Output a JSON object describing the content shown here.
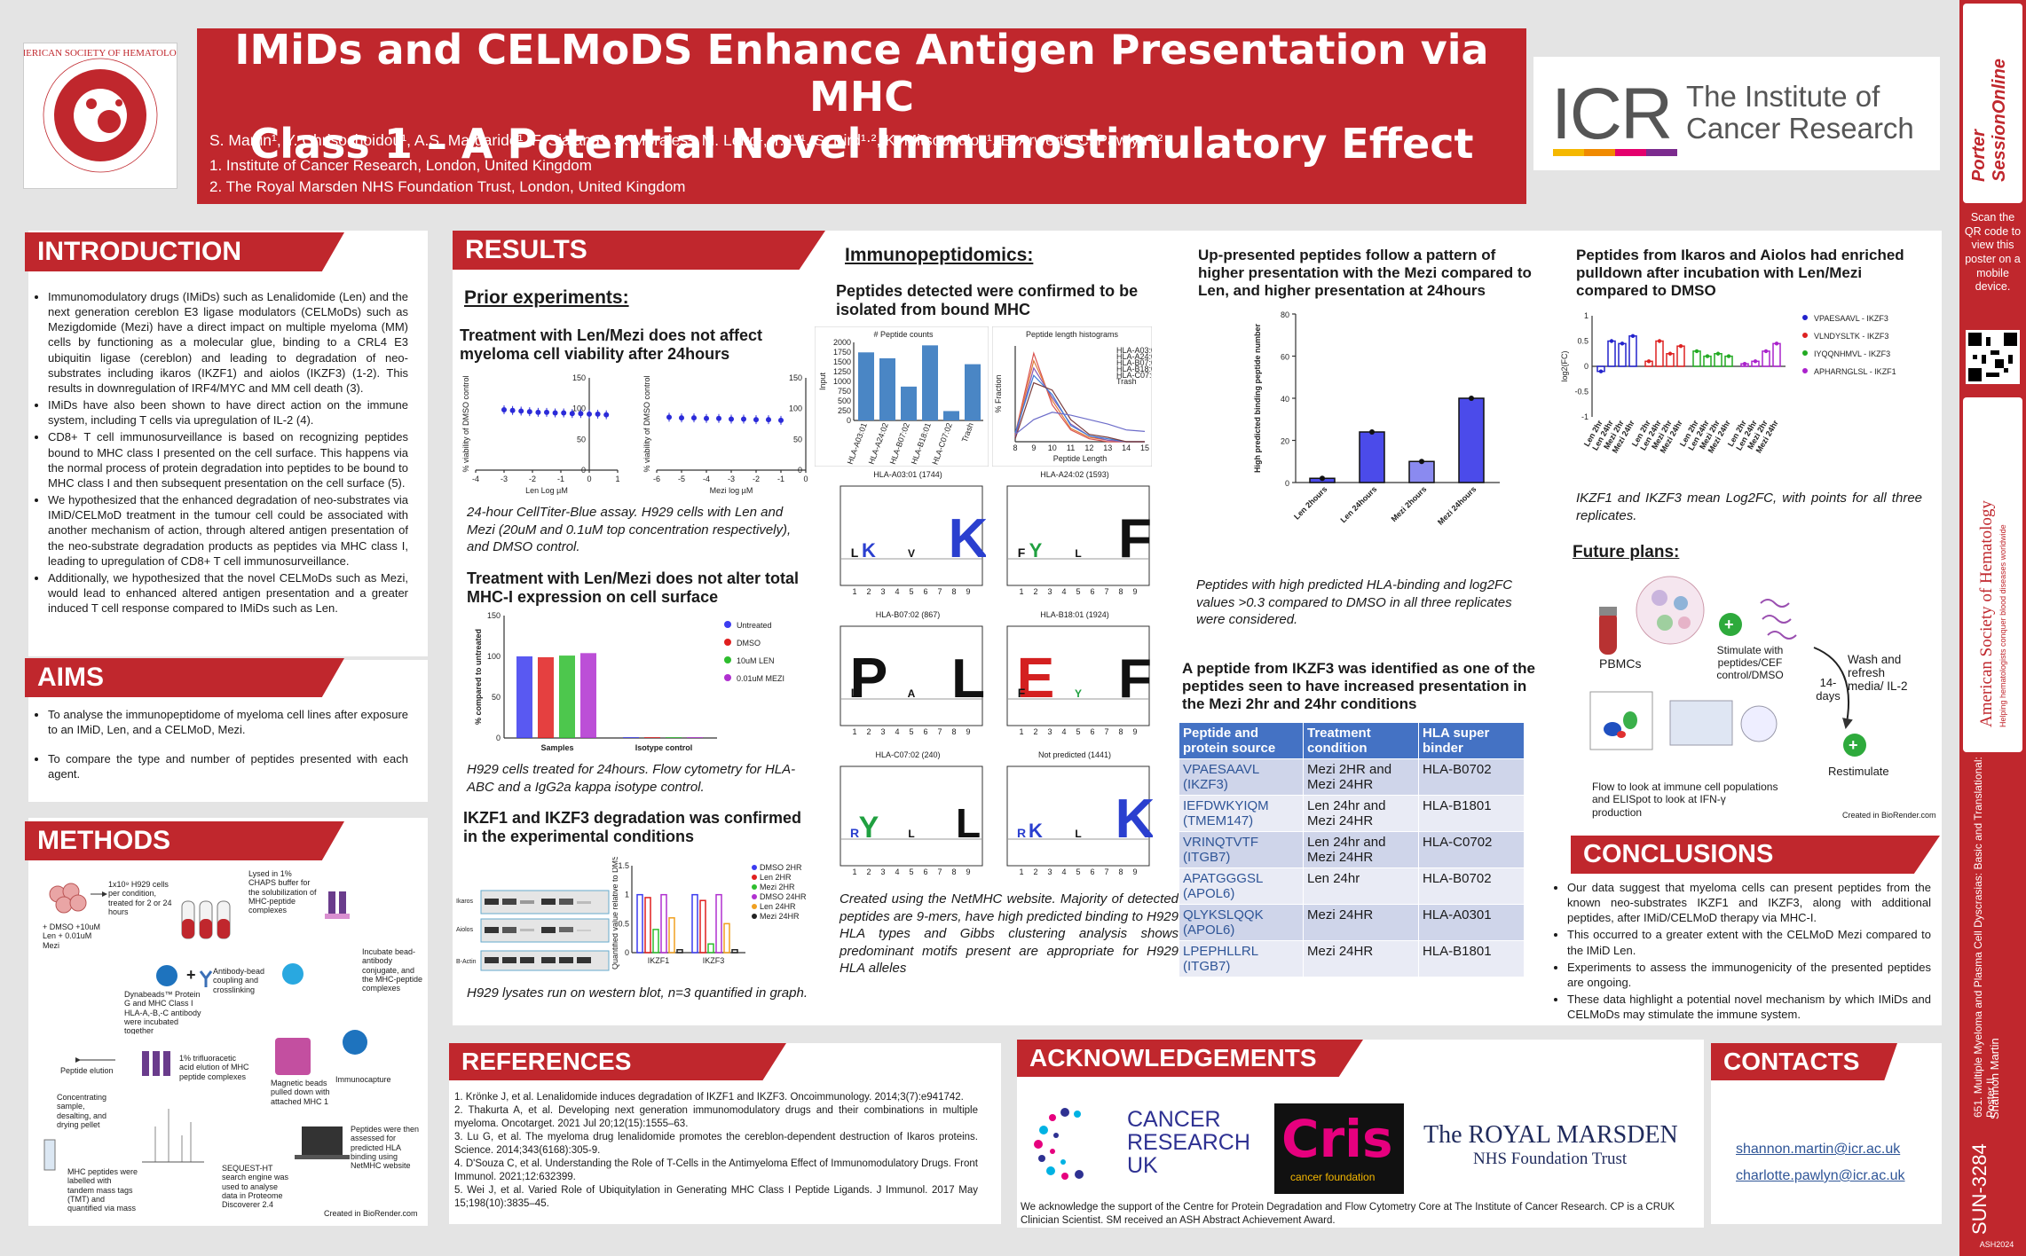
{
  "header": {
    "title_line1": "IMiDs and CELMoDS Enhance Antigen Presentation via MHC",
    "title_line2": "Class 1 – A Potential Novel Immunostimulatory Effect",
    "authors": "S. Martin¹, Y. Chrisochoidou¹, A.S. Margarido¹, F. Sialana¹, S. Morales¹, M. Leiro¹, Y. Li¹, S. Bird¹·², K. Mitsopoulos¹, E. Arwert¹, C. Pawlyn¹·²",
    "aff1": "1. Institute of Cancer Research, London, United Kingdom",
    "aff2": "2. The Royal Marsden NHS Foundation Trust, London, United Kingdom",
    "ash_logo_text": "AMERICAN SOCIETY OF HEMATOLOGY",
    "icr_abbr": "ICR",
    "icr_name1": "The Institute of",
    "icr_name2": "Cancer Research"
  },
  "sidebar": {
    "porter": "Porter SessionOnline",
    "qr_text": "Scan the QR code to view this poster on a mobile device.",
    "ash": "American Society of Hematology",
    "ash_tag": "Helping hematologists conquer blood diseases worldwide",
    "session": "651. Multiple Myeloma and Plasma Cell Dyscrasias: Basic and Translational: Poster II",
    "author": "Shannon Martin",
    "id": "SUN-3284",
    "year": "ASH2024"
  },
  "intro": {
    "heading": "INTRODUCTION",
    "bullets": [
      "Immunomodulatory drugs (IMiDs) such as Lenalidomide (Len) and the next generation cereblon E3 ligase modulators (CELMoDs) such as Mezigdomide (Mezi) have a direct impact on multiple myeloma (MM) cells by functioning as a molecular glue, binding to a CRL4 E3 ubiquitin ligase (cereblon) and leading to degradation of neo-substrates including ikaros (IKZF1) and aiolos (IKZF3) (1-2). This results in downregulation of IRF4/MYC and MM cell death (3).",
      "IMiDs have also been shown to have direct action on the immune system, including T cells via upregulation of IL-2 (4).",
      "CD8+ T cell immunosurveillance is based on recognizing peptides bound to MHC class I presented on the cell surface. This happens via the normal process of protein degradation into peptides to be bound to MHC class I and then subsequent presentation on the cell surface (5).",
      "We hypothesized that the enhanced degradation of neo-substrates via IMiD/CELMoD treatment in the tumour cell could be associated with another mechanism of action, through altered antigen presentation of the neo-substrate degradation products as peptides via MHC class I, leading to upregulation of CD8+ T cell immunosurveillance.",
      "Additionally, we hypothesized that the novel CELMoDs such as Mezi, would lead to enhanced altered antigen presentation and a greater induced T cell response compared to IMiDs such as Len."
    ]
  },
  "aims": {
    "heading": "AIMS",
    "bullets": [
      "To analyse the immunopeptidome of myeloma cell lines after exposure to an IMiD, Len, and a CELMoD, Mezi.",
      "To compare the type and number of peptides presented with each agent."
    ]
  },
  "methods": {
    "heading": "METHODS",
    "steps": [
      "1x10⁹ H929 cells per condition, treated for 2 or 24 hours",
      "+ DMSO +10uM Len + 0.01uM Mezi",
      "Lysed in 1% CHAPS buffer for the solubilization of MHC-peptide complexes",
      "Dynabeads™ Protein G and MHC Class I HLA-A,-B,-C antibody were incubated together",
      "Antibody-bead coupling and crosslinking",
      "Incubate bead-antibody conjugate, and the MHC-peptide complexes",
      "Peptide elution",
      "1% trifluoracetic acid elution of MHC peptide complexes",
      "Magnetic beads pulled down with attached MHC 1",
      "Immunocapture",
      "Concentrating sample, desalting, and drying pellet",
      "MHC peptides were labelled with tandem mass tags (TMT) and quantified via mass spec (TMT-MS2)",
      "SEQUEST-HT search engine was used to analyse data in Proteome Discoverer 2.4",
      "Peptides were then assessed for predicted HLA binding using NetMHC website"
    ],
    "credit": "Created in BioRender.com"
  },
  "results": {
    "heading": "RESULTS",
    "prior": "Prior experiments:",
    "t1": "Treatment with Len/Mezi does not affect myeloma cell viability after 24hours",
    "cap1": "24-hour CellTiter-Blue assay. H929 cells with Len and Mezi (20uM and 0.1uM top concentration respectively), and DMSO control.",
    "t2": "Treatment with Len/Mezi does not alter total MHC-I expression on cell surface",
    "cap2": "H929 cells treated for 24hours. Flow cytometry for HLA-ABC and a IgG2a kappa isotype control.",
    "t3": "IKZF1 and IKZF3 degradation was confirmed in the experimental conditions",
    "cap3": "H929 lysates run on western blot, n=3 quantified in graph."
  },
  "immuno": {
    "heading": "Immunopeptidomics:",
    "t1": "Peptides detected were confirmed to be isolated from bound MHC",
    "panel_a": "# Peptide counts",
    "panel_b": "Peptide length histograms",
    "ylab": "Input",
    "xlab": "Peptide Length",
    "logos": [
      "HLA-A03:01 (1744)",
      "HLA-A24:02 (1593)",
      "HLA-B07:02 (867)",
      "HLA-B18:01 (1924)",
      "HLA-C07:02 (240)",
      "Not predicted (1441)"
    ],
    "cap": "Created using the NetMHC website. Majority of detected peptides are 9-mers, have high predicted binding to H929 HLA types and Gibbs clustering analysis shows predominant motifs present are appropriate for H929 HLA alleles"
  },
  "uppres": {
    "t1": "Up-presented peptides follow a pattern of higher presentation with the Mezi compared to Len, and higher presentation at 24hours",
    "cap": "Peptides with high predicted HLA-binding and log2FC values >0.3 compared to DMSO in all three replicates were considered.",
    "t2": "A peptide from IKZF3 was identified as one of the peptides seen to have increased presentation in the Mezi 2hr and 24hr conditions"
  },
  "table": {
    "headers": [
      "Peptide and protein source",
      "Treatment condition",
      "HLA super binder"
    ],
    "rows": [
      [
        "VPAESAAVL (IKZF3)",
        "Mezi 2HR and Mezi 24HR",
        "HLA-B0702"
      ],
      [
        "IEFDWKYIQM (TMEM147)",
        "Len 24hr and Mezi 24HR",
        "HLA-B1801"
      ],
      [
        "VRINQTVTF (ITGB7)",
        "Len 24hr and Mezi 24HR",
        "HLA-C0702"
      ],
      [
        "APATGGGSL (APOL6)",
        "Len 24hr",
        "HLA-B0702"
      ],
      [
        "QLYKSLQQK (APOL6)",
        "Mezi 24HR",
        "HLA-A0301"
      ],
      [
        "LPEPHLLRL (ITGB7)",
        "Mezi 24HR",
        "HLA-B1801"
      ]
    ]
  },
  "ikaros": {
    "t1": "Peptides from Ikaros and Aiolos had enriched pulldown after incubation with Len/Mezi compared to DMSO",
    "cap": "IKZF1 and IKZF3 mean Log2FC, with points for all three replicates.",
    "ylab": "log2(FC)"
  },
  "future": {
    "heading": "Future plans:",
    "pbmc": "PBMCs",
    "stim": "Stimulate with peptides/CEF control/DMSO",
    "days": "14-days",
    "wash": "Wash and refresh media/ IL-2",
    "flow": "Flow to look at immune cell populations and ELISpot to look at IFN-γ production",
    "restim": "Restimulate",
    "credit": "Created in BioRender.com"
  },
  "conclusions": {
    "heading": "CONCLUSIONS",
    "bullets": [
      "Our data suggest that myeloma cells can present peptides from the known neo-substrates IKZF1 and IKZF3, along with additional peptides, after IMiD/CELMoD therapy via MHC-I.",
      "This occurred to a greater extent with the CELMoD Mezi compared to the IMiD Len.",
      "Experiments to assess the immunogenicity of the presented peptides are ongoing.",
      "These data highlight a potential novel mechanism by which IMiDs and CELMoDs may stimulate the immune system."
    ]
  },
  "references": {
    "heading": "REFERENCES",
    "items": [
      "1. Krönke J, et al. Lenalidomide induces degradation of IKZF1 and IKZF3. Oncoimmunology. 2014;3(7):e941742.",
      "2. Thakurta A, et al. Developing next generation immunomodulatory drugs and their combinations in multiple myeloma. Oncotarget. 2021 Jul 20;12(15):1555–63.",
      "3. Lu G, et al. The myeloma drug lenalidomide promotes the cereblon-dependent destruction of Ikaros proteins. Science. 2014;343(6168):305-9.",
      "4. D'Souza C, et al. Understanding the Role of T-Cells in the Antimyeloma Effect of Immunomodulatory Drugs. Front Immunol. 2021;12:632399.",
      "5. Wei J, et al. Varied Role of Ubiquitylation in Generating MHC Class I Peptide Ligands. J Immunol. 2017 May 15;198(10):3835–45."
    ]
  },
  "ack": {
    "heading": "ACKNOWLEDGEMENTS",
    "text": "We acknowledge the support of the Centre for Protein Degradation and Flow Cytometry Core at The Institute of Cancer Research. CP is a CRUK Clinician Scientist. SM received an ASH Abstract Achievement Award.",
    "cruk1": "CANCER",
    "cruk2": "RESEARCH",
    "cruk3": "UK",
    "cris": "Cris",
    "cris_sub": "cancer foundation",
    "rm1": "The ROYAL MARSDEN",
    "rm2": "NHS Foundation Trust"
  },
  "contacts": {
    "heading": "CONTACTS",
    "email1": "shannon.martin@icr.ac.uk",
    "email2": "charlotte.pawlyn@icr.ac.uk"
  },
  "chart_data": [
    {
      "type": "scatter",
      "title": "",
      "xlabel": "Len Log µM",
      "ylabel": "% viability of DMSO control",
      "x": [
        -3,
        -2.7,
        -2.4,
        -2.1,
        -1.8,
        -1.5,
        -1.2,
        -0.9,
        -0.6,
        -0.3,
        0,
        0.3,
        0.6
      ],
      "y": [
        98,
        97,
        96,
        95,
        94,
        94,
        93,
        93,
        92,
        92,
        91,
        91,
        90
      ],
      "xlim": [
        -4,
        1
      ],
      "ylim": [
        0,
        150
      ],
      "xticks": [
        -4,
        -3,
        -2,
        -1,
        0,
        1
      ],
      "yticks": [
        0,
        50,
        100,
        150
      ]
    },
    {
      "type": "scatter",
      "title": "",
      "xlabel": "Mezi log µM",
      "ylabel": "% viability of DMSO control",
      "x": [
        -5.5,
        -5,
        -4.5,
        -4,
        -3.5,
        -3,
        -2.5,
        -2,
        -1.5,
        -1
      ],
      "y": [
        86,
        85,
        85,
        84,
        84,
        83,
        83,
        82,
        82,
        81
      ],
      "xlim": [
        -6,
        0
      ],
      "ylim": [
        0,
        150
      ],
      "xticks": [
        -6,
        -5,
        -4,
        -3,
        -2,
        -1,
        0
      ],
      "yticks": [
        0,
        50,
        100,
        150
      ]
    },
    {
      "type": "bar",
      "ylabel": "% compared to untreated",
      "categories": [
        "Samples",
        "Isotype control"
      ],
      "series": [
        {
          "name": "Untreated",
          "values": [
            100,
            1
          ]
        },
        {
          "name": "DMSO",
          "values": [
            99,
            1
          ]
        },
        {
          "name": "10uM LEN",
          "values": [
            101,
            1
          ]
        },
        {
          "name": "0.01uM MEZI",
          "values": [
            104,
            1
          ]
        }
      ],
      "ylim": [
        0,
        150
      ],
      "yticks": [
        0,
        50,
        100,
        150
      ],
      "colors": [
        "#3c3cf0",
        "#e01f1f",
        "#2ebd2e",
        "#b030d0"
      ]
    },
    {
      "type": "bar",
      "ylabel": "Quantified value relative to DMSO",
      "categories": [
        "IKZF1",
        "IKZF3"
      ],
      "series": [
        {
          "name": "DMSO 2HR",
          "values": [
            1.0,
            1.0
          ]
        },
        {
          "name": "Len 2HR",
          "values": [
            0.95,
            0.9
          ]
        },
        {
          "name": "Mezi 2HR",
          "values": [
            0.4,
            0.15
          ]
        },
        {
          "name": "DMSO 24HR",
          "values": [
            1.0,
            1.0
          ]
        },
        {
          "name": "Len 24HR",
          "values": [
            0.6,
            0.5
          ]
        },
        {
          "name": "Mezi 24HR",
          "values": [
            0.05,
            0.05
          ]
        }
      ],
      "ylim": [
        0,
        1.5
      ],
      "colors": [
        "#3c3cf0",
        "#e01f1f",
        "#2ebd2e",
        "#b030d0",
        "#f0a020",
        "#222222"
      ]
    },
    {
      "type": "bar",
      "title": "# Peptide counts",
      "ylabel": "Input",
      "categories": [
        "HLA-A03:01",
        "HLA-A24:02",
        "HLA-B07:02",
        "HLA-B18:01",
        "HLA-C07:02",
        "Trash"
      ],
      "values": [
        1744,
        1593,
        867,
        1924,
        240,
        1441
      ],
      "ylim": [
        0,
        2000
      ],
      "yticks": [
        0,
        250,
        500,
        750,
        1000,
        1250,
        1500,
        1750,
        2000
      ]
    },
    {
      "type": "line",
      "title": "Peptide length histograms",
      "xlabel": "Peptide Length",
      "ylabel": "% Fraction",
      "x": [
        8,
        9,
        10,
        11,
        12,
        13,
        14,
        15
      ],
      "series": [
        {
          "name": "HLA-A03:01",
          "values": [
            5,
            60,
            25,
            8,
            2,
            0,
            0,
            0
          ]
        },
        {
          "name": "HLA-A24:02",
          "values": [
            4,
            55,
            28,
            9,
            3,
            1,
            0,
            0
          ]
        },
        {
          "name": "HLA-B07:02",
          "values": [
            3,
            50,
            30,
            12,
            4,
            1,
            0,
            0
          ]
        },
        {
          "name": "HLA-B18:01",
          "values": [
            6,
            45,
            32,
            11,
            4,
            2,
            0,
            0
          ]
        },
        {
          "name": "HLA-C07:02",
          "values": [
            2,
            40,
            35,
            15,
            5,
            3,
            0,
            0
          ]
        },
        {
          "name": "Trash",
          "values": [
            5,
            15,
            20,
            18,
            15,
            12,
            8,
            7
          ]
        }
      ],
      "xlim": [
        8,
        15
      ]
    },
    {
      "type": "bar",
      "ylabel": "High predicted binding peptide number",
      "categories": [
        "Len 2hours",
        "Len 24hours",
        "Mezi 2hours",
        "Mezi 24hours"
      ],
      "values": [
        2,
        24,
        10,
        40
      ],
      "ylim": [
        0,
        80
      ],
      "yticks": [
        0,
        20,
        40,
        60,
        80
      ]
    },
    {
      "type": "bar",
      "ylabel": "log2(FC)",
      "categories": [
        "Len 2hr",
        "Len 24hr",
        "Mezi 2hr",
        "Mezi 24hr"
      ],
      "series": [
        {
          "name": "VPAESAAVL - IKZF3",
          "values": [
            -0.1,
            0.5,
            0.45,
            0.6
          ]
        },
        {
          "name": "VLNDYSLTK - IKZF3",
          "values": [
            0.1,
            0.5,
            0.25,
            0.4
          ]
        },
        {
          "name": "IYQQNHMVL - IKZF3",
          "values": [
            0.3,
            0.2,
            0.25,
            0.2
          ]
        },
        {
          "name": "APHARNGLSL - IKZF1",
          "values": [
            0.05,
            0.1,
            0.3,
            0.45
          ]
        }
      ],
      "ylim": [
        -1,
        1
      ],
      "yticks": [
        -1,
        -0.5,
        0,
        0.5,
        1
      ],
      "colors": [
        "#2222cc",
        "#dd2222",
        "#22aa22",
        "#aa22cc"
      ]
    }
  ]
}
